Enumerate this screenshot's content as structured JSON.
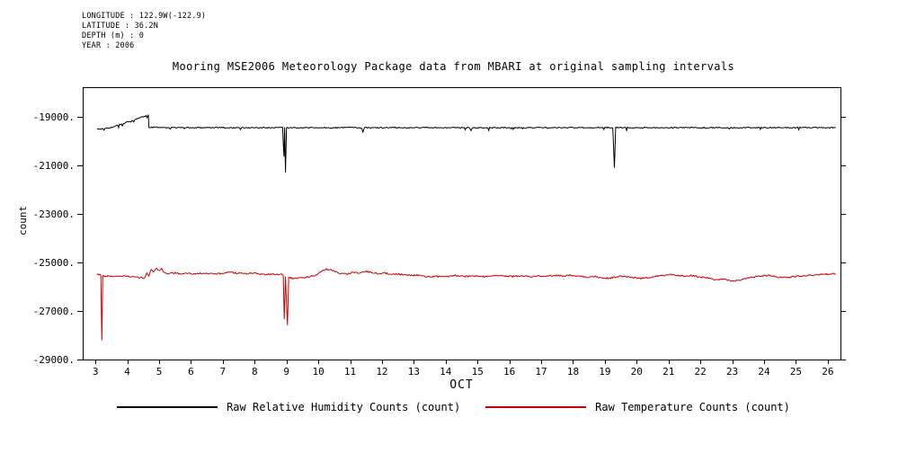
{
  "header": {
    "lines": [
      "LONGITUDE : 122.9W(-122.9)",
      "LATITUDE : 36.2N",
      "DEPTH (m) : 0",
      "YEAR : 2006"
    ]
  },
  "title": "Mooring MSE2006 Meteorology Package data from MBARI at original sampling intervals",
  "axes": {
    "ylabel": "count",
    "xlabel": "OCT",
    "yticks": [
      -19000,
      -21000,
      -23000,
      -25000,
      -27000,
      -29000
    ],
    "ytick_labels": [
      "-19000.",
      "-21000.",
      "-23000.",
      "-25000.",
      "-27000.",
      "-29000."
    ],
    "xticks": [
      3,
      4,
      5,
      6,
      7,
      8,
      9,
      10,
      11,
      12,
      13,
      14,
      15,
      16,
      17,
      18,
      19,
      20,
      21,
      22,
      23,
      24,
      25,
      26
    ],
    "xtick_labels": [
      "3",
      "4",
      "5",
      "6",
      "7",
      "8",
      "9",
      "10",
      "11",
      "12",
      "13",
      "14",
      "15",
      "16",
      "17",
      "18",
      "19",
      "20",
      "21",
      "22",
      "23",
      "24",
      "25",
      "26"
    ]
  },
  "legend": [
    {
      "label": "Raw Relative Humidity Counts (count)",
      "color": "#000000"
    },
    {
      "label": "Raw Temperature Counts (count)",
      "color": "#cc0000"
    }
  ],
  "chart_data": {
    "type": "line",
    "title": "Mooring MSE2006 Meteorology Package data from MBARI at original sampling intervals",
    "xlabel": "OCT",
    "ylabel": "count",
    "xlim": [
      2.6,
      26.4
    ],
    "ylim": [
      -29000,
      -17780
    ],
    "grid": false,
    "legend_position": "bottom",
    "series": [
      {
        "name": "Raw Relative Humidity Counts (count)",
        "color": "#000000",
        "noise": 22,
        "dropout": 110,
        "points": [
          [
            3.05,
            -19510
          ],
          [
            3.3,
            -19500
          ],
          [
            3.35,
            -19465
          ],
          [
            3.4,
            -19480
          ],
          [
            4.62,
            -18945
          ],
          [
            4.66,
            -18930
          ],
          [
            4.68,
            -19435
          ],
          [
            5.0,
            -19440
          ],
          [
            5.5,
            -19450
          ],
          [
            6.0,
            -19445
          ],
          [
            6.5,
            -19450
          ],
          [
            7.0,
            -19445
          ],
          [
            7.5,
            -19450
          ],
          [
            8.0,
            -19445
          ],
          [
            8.5,
            -19450
          ],
          [
            8.88,
            -19445
          ],
          [
            8.92,
            -20650
          ],
          [
            8.94,
            -19445
          ],
          [
            8.97,
            -21280
          ],
          [
            9.0,
            -19450
          ],
          [
            9.5,
            -19450
          ],
          [
            10.0,
            -19445
          ],
          [
            10.5,
            -19450
          ],
          [
            11.0,
            -19445
          ],
          [
            11.35,
            -19450
          ],
          [
            11.4,
            -19620
          ],
          [
            11.45,
            -19450
          ],
          [
            12.0,
            -19450
          ],
          [
            12.5,
            -19445
          ],
          [
            13.0,
            -19450
          ],
          [
            13.5,
            -19445
          ],
          [
            14.0,
            -19450
          ],
          [
            14.5,
            -19450
          ],
          [
            14.75,
            -19445
          ],
          [
            14.8,
            -19560
          ],
          [
            14.85,
            -19450
          ],
          [
            15.5,
            -19450
          ],
          [
            16.0,
            -19445
          ],
          [
            16.5,
            -19450
          ],
          [
            17.0,
            -19445
          ],
          [
            17.5,
            -19450
          ],
          [
            18.0,
            -19445
          ],
          [
            18.5,
            -19450
          ],
          [
            19.0,
            -19445
          ],
          [
            19.25,
            -19445
          ],
          [
            19.3,
            -21120
          ],
          [
            19.34,
            -19445
          ],
          [
            20.0,
            -19450
          ],
          [
            20.5,
            -19445
          ],
          [
            21.0,
            -19450
          ],
          [
            21.5,
            -19445
          ],
          [
            22.0,
            -19450
          ],
          [
            22.5,
            -19445
          ],
          [
            23.0,
            -19450
          ],
          [
            23.5,
            -19445
          ],
          [
            24.0,
            -19450
          ],
          [
            24.5,
            -19445
          ],
          [
            25.0,
            -19450
          ],
          [
            25.5,
            -19445
          ],
          [
            26.0,
            -19450
          ],
          [
            26.25,
            -19445
          ]
        ]
      },
      {
        "name": "Raw Temperature Counts (count)",
        "color": "#cc0000",
        "noise": 30,
        "dropout": 0,
        "points": [
          [
            3.05,
            -25470
          ],
          [
            3.1,
            -25500
          ],
          [
            3.17,
            -25520
          ],
          [
            3.2,
            -28230
          ],
          [
            3.23,
            -25560
          ],
          [
            3.5,
            -25570
          ],
          [
            3.8,
            -25560
          ],
          [
            4.1,
            -25590
          ],
          [
            4.4,
            -25620
          ],
          [
            4.55,
            -25640
          ],
          [
            4.62,
            -25420
          ],
          [
            4.68,
            -25560
          ],
          [
            4.75,
            -25280
          ],
          [
            4.82,
            -25400
          ],
          [
            4.9,
            -25240
          ],
          [
            5.0,
            -25330
          ],
          [
            5.08,
            -25260
          ],
          [
            5.15,
            -25420
          ],
          [
            5.3,
            -25460
          ],
          [
            5.5,
            -25440
          ],
          [
            5.7,
            -25470
          ],
          [
            5.9,
            -25450
          ],
          [
            6.1,
            -25480
          ],
          [
            6.4,
            -25440
          ],
          [
            6.7,
            -25470
          ],
          [
            7.0,
            -25440
          ],
          [
            7.2,
            -25400
          ],
          [
            7.45,
            -25440
          ],
          [
            7.7,
            -25470
          ],
          [
            7.9,
            -25440
          ],
          [
            8.1,
            -25470
          ],
          [
            8.4,
            -25500
          ],
          [
            8.7,
            -25480
          ],
          [
            8.9,
            -25500
          ],
          [
            8.93,
            -27320
          ],
          [
            8.97,
            -25560
          ],
          [
            9.0,
            -26650
          ],
          [
            9.03,
            -27560
          ],
          [
            9.07,
            -25620
          ],
          [
            9.2,
            -25650
          ],
          [
            9.45,
            -25640
          ],
          [
            9.7,
            -25600
          ],
          [
            9.9,
            -25520
          ],
          [
            10.1,
            -25380
          ],
          [
            10.25,
            -25270
          ],
          [
            10.4,
            -25300
          ],
          [
            10.55,
            -25380
          ],
          [
            10.7,
            -25450
          ],
          [
            10.9,
            -25480
          ],
          [
            11.1,
            -25400
          ],
          [
            11.3,
            -25430
          ],
          [
            11.5,
            -25370
          ],
          [
            11.7,
            -25420
          ],
          [
            11.9,
            -25460
          ],
          [
            12.1,
            -25440
          ],
          [
            12.3,
            -25490
          ],
          [
            12.5,
            -25470
          ],
          [
            12.7,
            -25510
          ],
          [
            12.9,
            -25540
          ],
          [
            13.1,
            -25520
          ],
          [
            13.3,
            -25560
          ],
          [
            13.5,
            -25590
          ],
          [
            13.7,
            -25570
          ],
          [
            13.9,
            -25600
          ],
          [
            14.1,
            -25570
          ],
          [
            14.3,
            -25540
          ],
          [
            14.5,
            -25560
          ],
          [
            14.7,
            -25580
          ],
          [
            14.9,
            -25550
          ],
          [
            15.1,
            -25570
          ],
          [
            15.3,
            -25590
          ],
          [
            15.5,
            -25560
          ],
          [
            15.7,
            -25540
          ],
          [
            15.9,
            -25560
          ],
          [
            16.1,
            -25580
          ],
          [
            16.3,
            -25550
          ],
          [
            16.5,
            -25570
          ],
          [
            16.7,
            -25590
          ],
          [
            16.9,
            -25560
          ],
          [
            17.1,
            -25580
          ],
          [
            17.3,
            -25550
          ],
          [
            17.5,
            -25530
          ],
          [
            17.7,
            -25560
          ],
          [
            17.9,
            -25520
          ],
          [
            18.1,
            -25550
          ],
          [
            18.3,
            -25580
          ],
          [
            18.5,
            -25610
          ],
          [
            18.7,
            -25580
          ],
          [
            18.9,
            -25640
          ],
          [
            19.1,
            -25660
          ],
          [
            19.3,
            -25610
          ],
          [
            19.5,
            -25560
          ],
          [
            19.7,
            -25590
          ],
          [
            19.9,
            -25620
          ],
          [
            20.1,
            -25660
          ],
          [
            20.3,
            -25630
          ],
          [
            20.5,
            -25590
          ],
          [
            20.7,
            -25560
          ],
          [
            20.9,
            -25530
          ],
          [
            21.1,
            -25500
          ],
          [
            21.3,
            -25530
          ],
          [
            21.5,
            -25560
          ],
          [
            21.7,
            -25540
          ],
          [
            21.9,
            -25580
          ],
          [
            22.1,
            -25620
          ],
          [
            22.3,
            -25660
          ],
          [
            22.5,
            -25720
          ],
          [
            22.7,
            -25690
          ],
          [
            22.9,
            -25730
          ],
          [
            23.1,
            -25760
          ],
          [
            23.3,
            -25700
          ],
          [
            23.5,
            -25640
          ],
          [
            23.7,
            -25600
          ],
          [
            23.9,
            -25560
          ],
          [
            24.1,
            -25530
          ],
          [
            24.3,
            -25570
          ],
          [
            24.5,
            -25610
          ],
          [
            24.7,
            -25630
          ],
          [
            24.9,
            -25590
          ],
          [
            25.1,
            -25560
          ],
          [
            25.3,
            -25540
          ],
          [
            25.5,
            -25520
          ],
          [
            25.7,
            -25500
          ],
          [
            25.9,
            -25490
          ],
          [
            26.1,
            -25470
          ],
          [
            26.25,
            -25460
          ]
        ]
      }
    ]
  }
}
